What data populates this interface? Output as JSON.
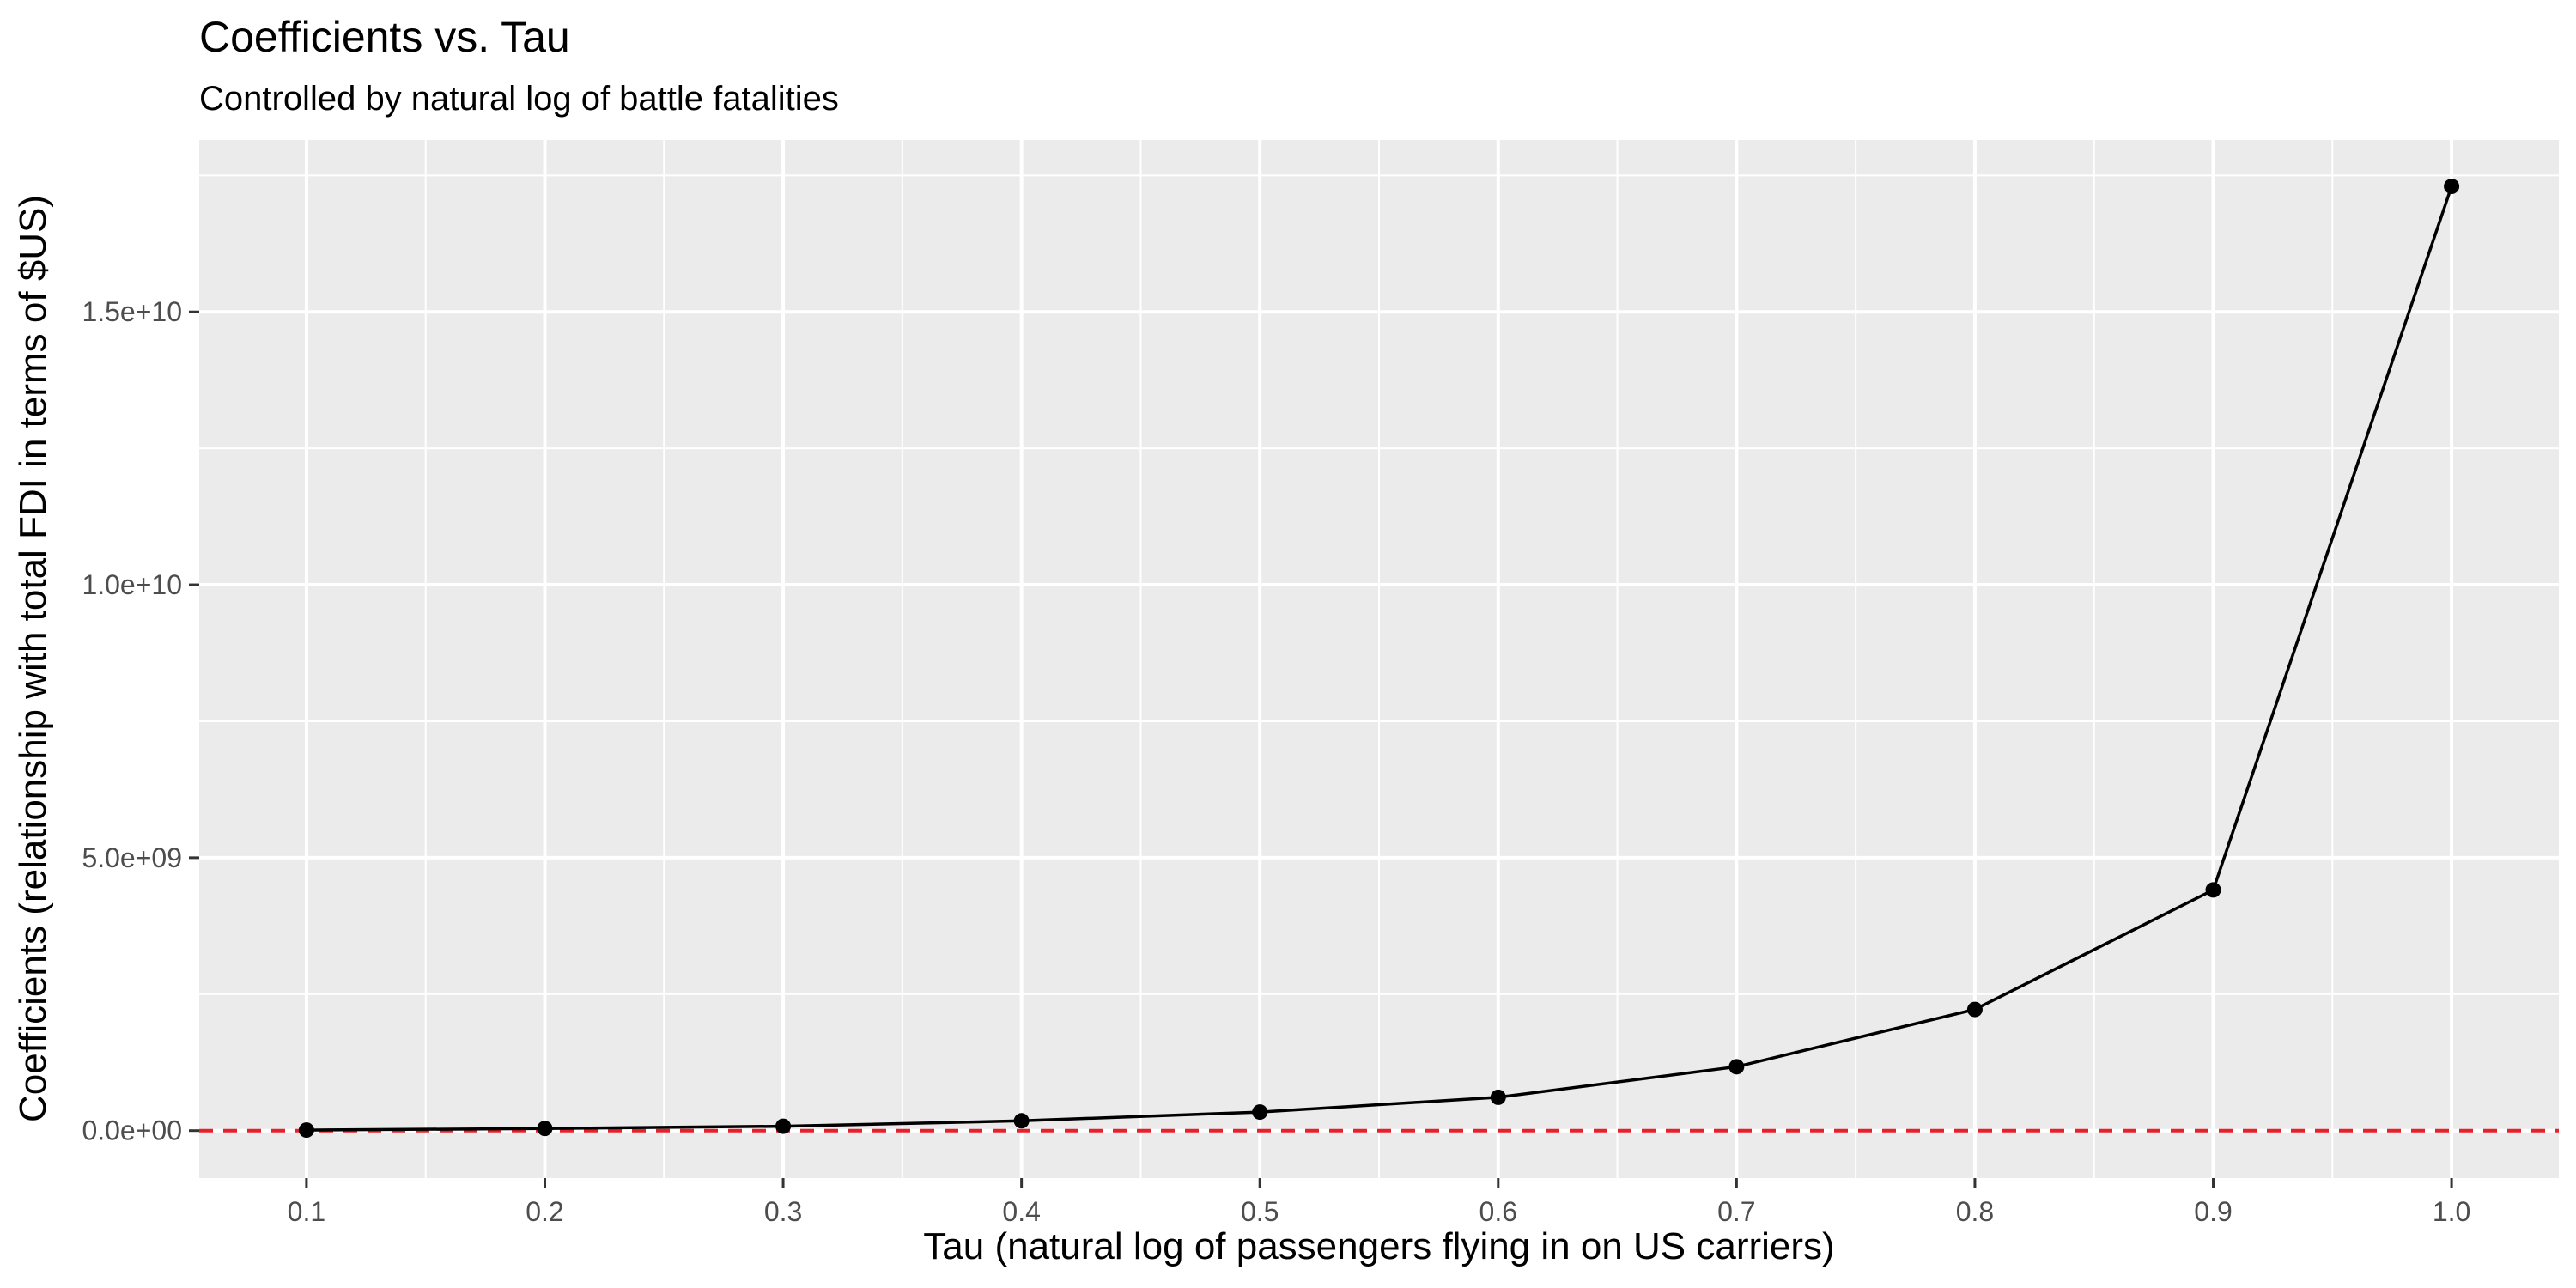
{
  "chart_data": {
    "type": "line",
    "title": "Coefficients vs. Tau",
    "subtitle": "Controlled by natural log of battle fatalities",
    "xlabel": "Tau (natural log of passengers flying in on US carriers)",
    "ylabel": "Coefficients (relationship with total FDI in terms of $US)",
    "x": [
      0.1,
      0.2,
      0.3,
      0.4,
      0.5,
      0.6,
      0.7,
      0.8,
      0.9,
      1.0
    ],
    "series": [
      {
        "values": [
          10000000,
          40000000,
          80000000,
          180000000,
          340000000,
          610000000,
          1170000000,
          2220000000,
          4410000000,
          17300000000
        ]
      }
    ],
    "xlim": [
      0.055,
      1.045
    ],
    "ylim": [
      -870000000,
      18150000000
    ],
    "x_ticks": [
      0.1,
      0.2,
      0.3,
      0.4,
      0.5,
      0.6,
      0.7,
      0.8,
      0.9,
      1.0
    ],
    "x_tick_labels": [
      "0.1",
      "0.2",
      "0.3",
      "0.4",
      "0.5",
      "0.6",
      "0.7",
      "0.8",
      "0.9",
      "1.0"
    ],
    "y_ticks": [
      0,
      5000000000,
      10000000000,
      15000000000
    ],
    "y_tick_labels": [
      "0.0e+00",
      "5.0e+09",
      "1.0e+10",
      "1.5e+10"
    ],
    "reference_line": {
      "y": 0,
      "style": "dashed",
      "color": "#e8202a"
    },
    "grid": true,
    "colors": {
      "panel_background": "#ebebeb",
      "grid": "#ffffff",
      "line": "#000000",
      "point": "#000000"
    }
  }
}
